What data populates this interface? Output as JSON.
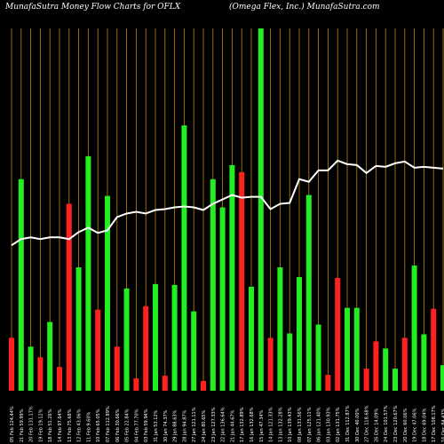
{
  "header": {
    "title": "MunafaSutra  Money  Flow  Charts for OFLX",
    "subtitle": "(Omega  Flex,  Inc.) MunafaSutra.com"
  },
  "colors": {
    "background": "#000000",
    "up": "#22ee22",
    "down": "#ff2020",
    "grid": "#b8860b",
    "line": "#ffffff"
  },
  "chart_data": {
    "type": "bar",
    "title": "MunafaSutra  Money  Flow  Charts for OFLX",
    "subtitle": "(Omega  Flex,  Inc.) MunafaSutra.com",
    "categories": [
      "05 Feb 124.44%",
      "21 Feb 59.99%",
      "20 Feb 131.17%",
      "19 Feb 19.12%",
      "18 Feb 51.26%",
      "14 Feb 97.64%",
      "13 Feb 75.68%",
      "12 Feb 43.06%",
      "11 Feb 9.60%",
      "10 Feb 65.05%",
      "07 Feb 112.89%",
      "06 Feb 30.66%",
      "05 Feb 22.84%",
      "04 Feb 77.70%",
      "03 Feb 59.94%",
      "31 Jan 53.12%",
      "30 Jan 74.37%",
      "29 Jan 88.63%",
      "28 Jan 94.87%",
      "27 Jan 121.11%",
      "24 Jan 80.65%",
      "23 Jan 127.33%",
      "22 Jan 136.64%",
      "21 Jan 44.67%",
      "17 Jan 132.89%",
      "16 Jan 132.68%",
      "15 Jan 47.34%",
      "14 Jan 121.33%",
      "13 Jan 132.28%",
      "10 Jan 139.43%",
      "08 Jan 131.56%",
      "07 Jan 125.11%",
      "06 Jan 121.40%",
      "03 Jan 130.93%",
      "02 Jan 131.75%",
      "31 Dec 112.87%",
      "30 Dec 40.00%",
      "27 Dec 118.68%",
      "26 Dec 14.09%",
      "24 Dec 101.57%",
      "23 Dec 120.67%",
      "20 Dec 60.06%",
      "19 Dec 47.06%",
      "18 Dec 69.04%",
      "17 Dec 108.17%",
      "16 Dec 84.43%"
    ],
    "values": [
      60,
      240,
      50,
      38,
      78,
      27,
      212,
      140,
      266,
      92,
      221,
      50,
      116,
      14,
      96,
      121,
      17,
      120,
      301,
      90,
      11,
      240,
      208,
      256,
      248,
      118,
      411,
      60,
      140,
      65,
      129,
      222,
      75,
      18,
      128,
      94,
      94,
      25,
      56,
      48,
      25,
      60,
      142,
      64,
      93,
      29
    ],
    "directions": [
      "down",
      "up",
      "up",
      "down",
      "up",
      "down",
      "down",
      "up",
      "up",
      "down",
      "up",
      "down",
      "up",
      "down",
      "down",
      "up",
      "down",
      "up",
      "up",
      "up",
      "down",
      "up",
      "up",
      "up",
      "down",
      "up",
      "up",
      "down",
      "up",
      "up",
      "up",
      "up",
      "up",
      "down",
      "down",
      "up",
      "up",
      "down",
      "down",
      "up",
      "up",
      "down",
      "up",
      "up",
      "down",
      "up"
    ],
    "line": [
      165,
      172,
      174,
      172,
      174,
      174,
      172,
      180,
      185,
      179,
      182,
      197,
      201,
      203,
      201,
      205,
      206,
      208,
      209,
      208,
      205,
      212,
      217,
      222,
      219,
      220,
      220,
      206,
      212,
      213,
      240,
      237,
      250,
      250,
      261,
      257,
      256,
      247,
      255,
      254,
      258,
      260,
      253,
      254,
      253,
      252
    ],
    "ylim": [
      0,
      411
    ],
    "grid": "vertical",
    "legend": ""
  }
}
